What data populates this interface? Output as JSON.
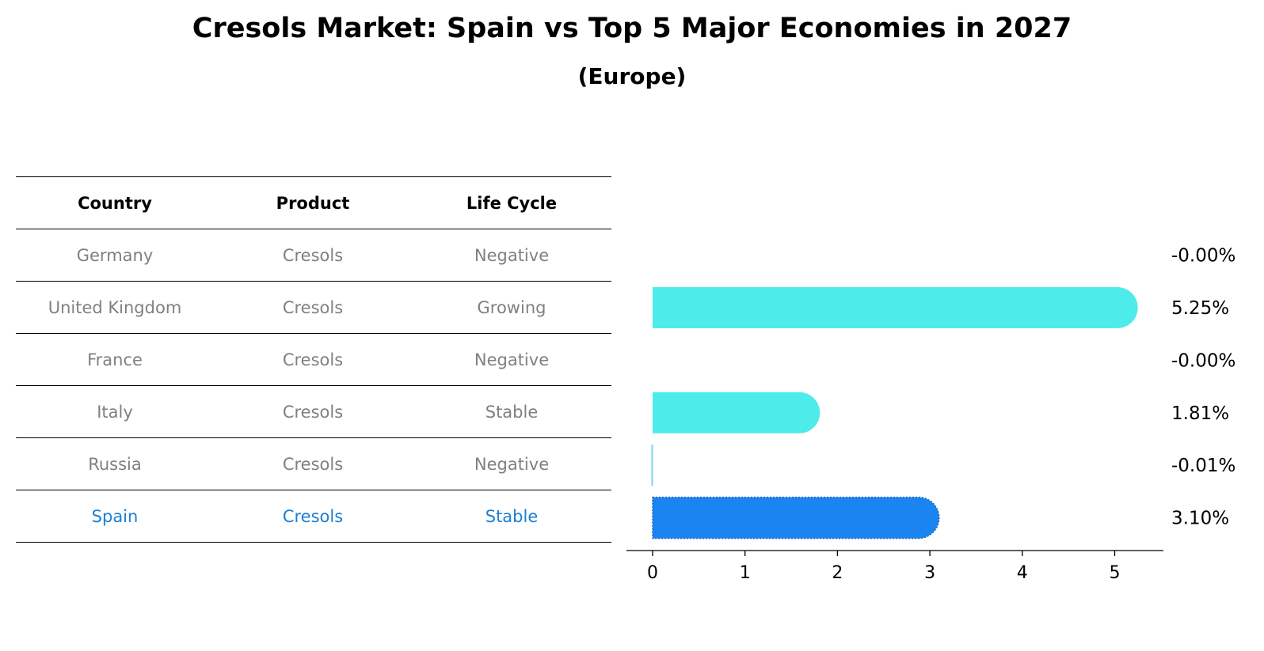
{
  "title": "Cresols Market: Spain vs Top 5 Major Economies in 2027",
  "subtitle": "(Europe)",
  "table": {
    "headers": [
      "Country",
      "Product",
      "Life Cycle"
    ],
    "rows": [
      [
        "Germany",
        "Cresols",
        "Negative"
      ],
      [
        "United Kingdom",
        "Cresols",
        "Growing"
      ],
      [
        "France",
        "Cresols",
        "Negative"
      ],
      [
        "Italy",
        "Cresols",
        "Stable"
      ],
      [
        "Russia",
        "Cresols",
        "Negative"
      ],
      [
        "Spain",
        "Cresols",
        "Stable"
      ]
    ],
    "highlight_row": "Spain"
  },
  "chart_data": {
    "type": "bar",
    "orientation": "horizontal",
    "categories": [
      "Germany",
      "United Kingdom",
      "France",
      "Italy",
      "Russia",
      "Spain"
    ],
    "values": [
      -0.0,
      5.25,
      -0.0,
      1.81,
      -0.01,
      3.1
    ],
    "value_labels": [
      "-0.00%",
      "5.25%",
      "-0.00%",
      "1.81%",
      "-0.01%",
      "3.10%"
    ],
    "xlim": [
      -0.28,
      5.5
    ],
    "xticks": [
      0,
      1,
      2,
      3,
      4,
      5
    ],
    "colors": {
      "default": "#4deceb",
      "negative": "#7dd3f0",
      "highlight": "#1a85f0"
    },
    "highlight": "Spain",
    "grid": false
  }
}
